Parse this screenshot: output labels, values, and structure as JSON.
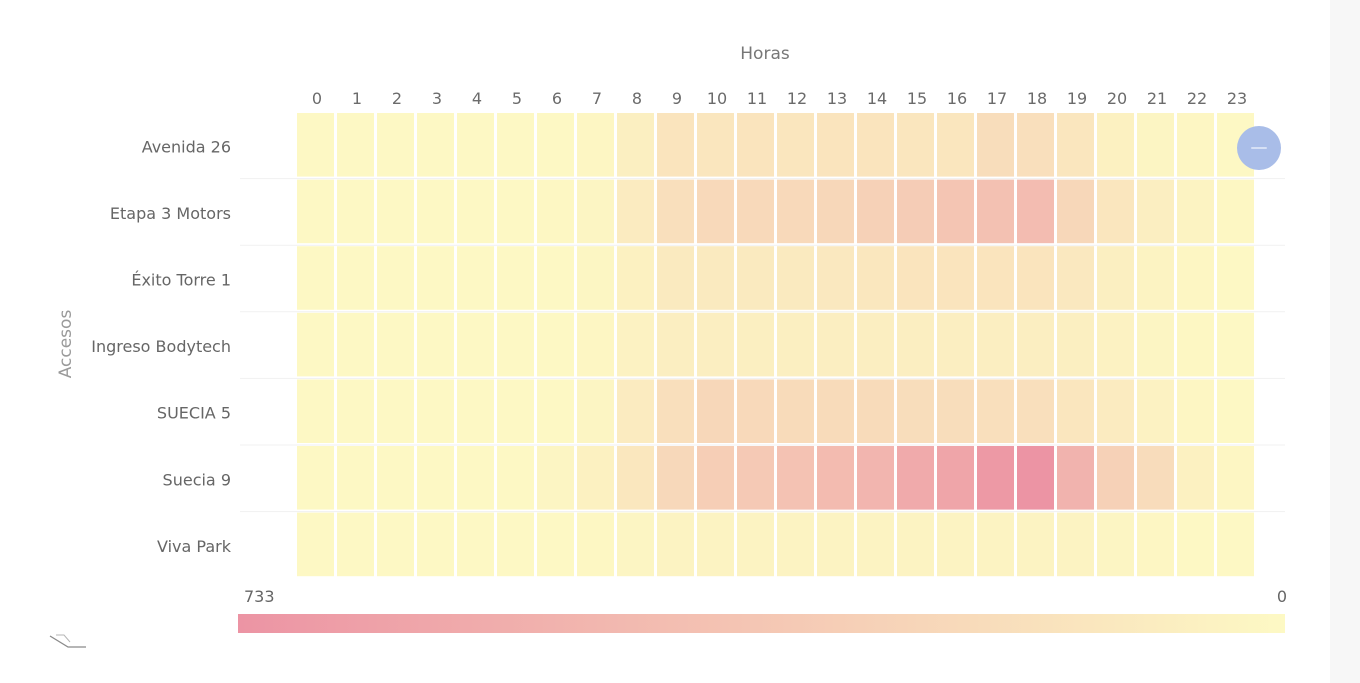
{
  "chart_data": {
    "type": "heatmap",
    "xlabel": "Horas",
    "ylabel": "Accesos",
    "x": [
      "0",
      "1",
      "2",
      "3",
      "4",
      "5",
      "6",
      "7",
      "8",
      "9",
      "10",
      "11",
      "12",
      "13",
      "14",
      "15",
      "16",
      "17",
      "18",
      "19",
      "20",
      "21",
      "22",
      "23"
    ],
    "y": [
      "Avenida 26",
      "Etapa 3 Motors",
      "Éxito Torre 1",
      "Ingreso Bodytech",
      "SUECIA 5",
      "Suecia 9",
      "Viva Park"
    ],
    "values": [
      [
        5,
        5,
        5,
        5,
        5,
        5,
        10,
        20,
        70,
        150,
        140,
        150,
        140,
        150,
        150,
        140,
        140,
        200,
        190,
        140,
        60,
        30,
        20,
        10
      ],
      [
        5,
        5,
        5,
        5,
        5,
        5,
        15,
        30,
        100,
        190,
        230,
        230,
        230,
        250,
        290,
        330,
        380,
        410,
        440,
        250,
        140,
        80,
        40,
        15
      ],
      [
        5,
        5,
        5,
        5,
        5,
        5,
        10,
        25,
        60,
        110,
        110,
        110,
        110,
        120,
        130,
        150,
        150,
        150,
        150,
        120,
        70,
        40,
        20,
        5
      ],
      [
        5,
        5,
        5,
        5,
        5,
        5,
        10,
        20,
        50,
        80,
        80,
        70,
        70,
        80,
        80,
        80,
        80,
        80,
        80,
        70,
        50,
        30,
        15,
        5
      ],
      [
        5,
        5,
        5,
        5,
        5,
        5,
        10,
        30,
        100,
        190,
        250,
        230,
        220,
        220,
        220,
        200,
        200,
        190,
        190,
        140,
        100,
        50,
        20,
        10
      ],
      [
        5,
        5,
        5,
        5,
        5,
        10,
        30,
        60,
        130,
        240,
        310,
        350,
        400,
        450,
        490,
        570,
        610,
        700,
        733,
        510,
        290,
        210,
        60,
        20
      ],
      [
        5,
        5,
        5,
        5,
        5,
        5,
        10,
        15,
        30,
        40,
        40,
        40,
        40,
        40,
        40,
        40,
        40,
        40,
        40,
        40,
        30,
        20,
        10,
        5
      ]
    ],
    "scale": {
      "max": 733,
      "min": 0,
      "max_label": "733",
      "min_label": "0"
    },
    "colors": {
      "high": "#ec94a4",
      "low": "#fdf9c4"
    },
    "grid": false,
    "legend": "bottom"
  },
  "controls": {
    "focus_mode_icon": "minus-icon",
    "corner_icon": "cursor-glyph"
  }
}
